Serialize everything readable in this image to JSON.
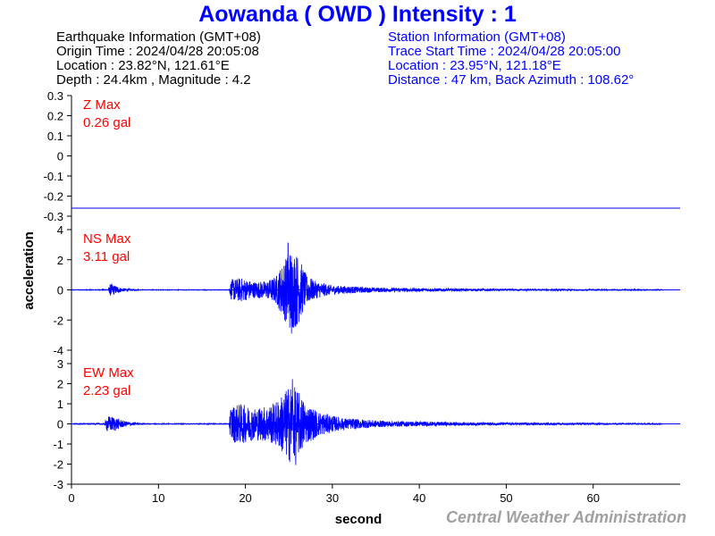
{
  "header": {
    "title": "Aowanda ( OWD ) Intensity : 1"
  },
  "earthquake_info": {
    "heading": "Earthquake Information (GMT+08)",
    "origin_time": "Origin Time : 2024/04/28 20:05:08",
    "location": "Location : 23.82°N, 121.61°E",
    "depth_magnitude": "Depth : 24.4km , Magnitude : 4.2"
  },
  "station_info": {
    "heading": "Station Information (GMT+08)",
    "trace_start": "Trace Start Time : 2024/04/28 20:05:00",
    "location": "Location : 23.95°N, 121.18°E",
    "distance": "Distance : 47 km, Back Azimuth : 108.62°"
  },
  "footer": {
    "credit": "Central Weather Administration"
  },
  "colors": {
    "trace": "#0000ff",
    "max_label": "#ff0000",
    "title": "#0000ff",
    "footer": "#a0a0a0"
  },
  "chart_data": {
    "type": "line",
    "xlabel": "second",
    "ylabel": "acceleration",
    "xlim": [
      0,
      70
    ],
    "xticks": [
      0,
      10,
      20,
      30,
      40,
      50,
      60
    ],
    "grid": false,
    "panels": [
      {
        "name": "Z",
        "max_label": "Z Max",
        "max_value": "0.26 gal",
        "ylim": [
          -0.3,
          0.3
        ],
        "yticks": [
          0.3,
          0.2,
          0.1,
          0,
          -0.1,
          -0.2,
          -0.3
        ],
        "ytick_labels": [
          "0.3",
          "0.2",
          "0.1",
          "0",
          "-0.1",
          "-0.2",
          "-0.3"
        ],
        "trace_kind": "flat",
        "constant_value": -0.26
      },
      {
        "name": "NS",
        "max_label": "NS Max",
        "max_value": "3.11 gal",
        "ylim": [
          -4,
          4
        ],
        "yticks": [
          4,
          2,
          0,
          -2,
          -4
        ],
        "ytick_labels": [
          "4",
          "2",
          "0",
          "-2",
          "-4"
        ],
        "trace_kind": "waveform",
        "envelope": [
          [
            0,
            0.02
          ],
          [
            4.2,
            0.03
          ],
          [
            4.5,
            0.45
          ],
          [
            5.0,
            0.3
          ],
          [
            5.8,
            0.12
          ],
          [
            7.2,
            0.05
          ],
          [
            8,
            0.02
          ],
          [
            18.1,
            0.02
          ],
          [
            18.4,
            0.7
          ],
          [
            19.5,
            0.8
          ],
          [
            21,
            0.55
          ],
          [
            22.5,
            0.6
          ],
          [
            23.5,
            0.9
          ],
          [
            24.5,
            2.0
          ],
          [
            25.2,
            2.8
          ],
          [
            26.0,
            2.4
          ],
          [
            27,
            1.0
          ],
          [
            28,
            0.6
          ],
          [
            30,
            0.3
          ],
          [
            35,
            0.15
          ],
          [
            45,
            0.08
          ],
          [
            55,
            0.05
          ],
          [
            67,
            0.03
          ],
          [
            70,
            0.03
          ]
        ],
        "peak": [
          24.9,
          3.11
        ],
        "trough": [
          25.3,
          -2.9
        ]
      },
      {
        "name": "EW",
        "max_label": "EW Max",
        "max_value": "2.23 gal",
        "ylim": [
          -3,
          3
        ],
        "yticks": [
          3,
          2,
          1,
          0,
          -1,
          -2,
          -3
        ],
        "ytick_labels": [
          "3",
          "2",
          "1",
          "0",
          "-1",
          "-2",
          "-3"
        ],
        "trace_kind": "waveform",
        "envelope": [
          [
            0,
            0.02
          ],
          [
            3.8,
            0.03
          ],
          [
            4.1,
            0.4
          ],
          [
            5.0,
            0.35
          ],
          [
            6.0,
            0.15
          ],
          [
            7.5,
            0.05
          ],
          [
            8,
            0.02
          ],
          [
            18.1,
            0.02
          ],
          [
            18.3,
            0.9
          ],
          [
            19.5,
            1.0
          ],
          [
            21,
            0.8
          ],
          [
            22.5,
            0.9
          ],
          [
            23.5,
            1.1
          ],
          [
            24.5,
            1.6
          ],
          [
            25.2,
            2.0
          ],
          [
            26.0,
            1.7
          ],
          [
            27,
            1.0
          ],
          [
            28.5,
            0.6
          ],
          [
            31,
            0.3
          ],
          [
            36,
            0.15
          ],
          [
            45,
            0.08
          ],
          [
            55,
            0.05
          ],
          [
            67,
            0.03
          ],
          [
            70,
            0.03
          ]
        ],
        "peak": [
          25.4,
          2.23
        ],
        "trough": [
          25.8,
          -2.05
        ]
      }
    ]
  }
}
